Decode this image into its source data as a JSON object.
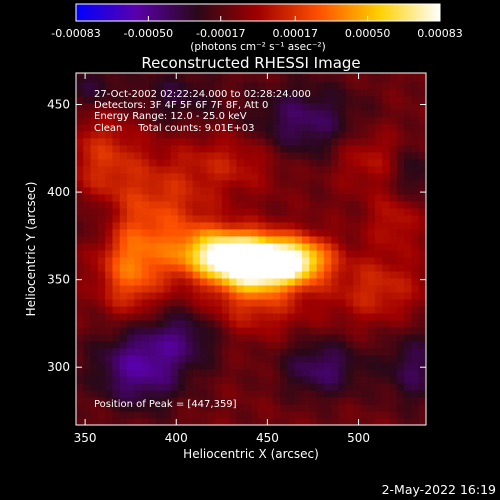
{
  "chart_data": {
    "type": "heatmap",
    "title": "Reconstructed RHESSI Image",
    "xlabel": "Heliocentric X (arcsec)",
    "ylabel": "Heliocentric Y (arcsec)",
    "xlim": [
      345,
      537
    ],
    "ylim": [
      267,
      468
    ],
    "xticks": [
      350,
      400,
      450,
      500
    ],
    "yticks": [
      300,
      350,
      400,
      450
    ],
    "colorbar": {
      "ticks": [
        "-0.00083",
        "-0.00050",
        "-0.00017",
        "0.00017",
        "0.00050",
        "0.00083"
      ],
      "range": [
        -0.00083,
        0.00083
      ],
      "units": "(photons cm⁻² s⁻¹ asec⁻²)",
      "colors": [
        "#0000ff",
        "#5a00aa",
        "#2a0818",
        "#a00000",
        "#ff5000",
        "#ffd000",
        "#ffffff"
      ]
    },
    "annotations": [
      "27-Oct-2002 02:22:24.000 to 02:28:24.000",
      "Detectors: 3F 4F 5F 6F 7F 8F, Att 0",
      "Energy Range: 12.0 - 25.0 keV",
      "Clean     Total counts: 9.01E+03"
    ],
    "peak_label": "Position of Peak = [447,359]",
    "peak": [
      447,
      359
    ],
    "sources": [
      {
        "x": 447,
        "y": 359,
        "sx": 16,
        "sy": 10,
        "amp": 0.0011
      },
      {
        "x": 425,
        "y": 365,
        "sx": 18,
        "sy": 10,
        "amp": 0.00075
      },
      {
        "x": 470,
        "y": 362,
        "sx": 12,
        "sy": 9,
        "amp": 0.0005
      },
      {
        "x": 392,
        "y": 388,
        "sx": 20,
        "sy": 22,
        "amp": 0.0003
      },
      {
        "x": 375,
        "y": 355,
        "sx": 12,
        "sy": 18,
        "amp": 0.0004
      },
      {
        "x": 360,
        "y": 420,
        "sx": 14,
        "sy": 18,
        "amp": 0.00025
      },
      {
        "x": 440,
        "y": 335,
        "sx": 22,
        "sy": 12,
        "amp": 0.00025
      },
      {
        "x": 510,
        "y": 345,
        "sx": 18,
        "sy": 14,
        "amp": 0.00025
      },
      {
        "x": 505,
        "y": 420,
        "sx": 14,
        "sy": 12,
        "amp": 0.0002
      },
      {
        "x": 432,
        "y": 418,
        "sx": 20,
        "sy": 12,
        "amp": 0.0002
      },
      {
        "x": 520,
        "y": 385,
        "sx": 10,
        "sy": 12,
        "amp": 0.0002
      },
      {
        "x": 480,
        "y": 300,
        "sx": 16,
        "sy": 12,
        "amp": -0.0003
      },
      {
        "x": 380,
        "y": 300,
        "sx": 18,
        "sy": 16,
        "amp": -0.0004
      },
      {
        "x": 405,
        "y": 320,
        "sx": 16,
        "sy": 12,
        "amp": -0.00025
      },
      {
        "x": 530,
        "y": 300,
        "sx": 12,
        "sy": 16,
        "amp": -0.00025
      },
      {
        "x": 470,
        "y": 440,
        "sx": 22,
        "sy": 16,
        "amp": -0.0003
      },
      {
        "x": 400,
        "y": 455,
        "sx": 16,
        "sy": 12,
        "amp": -0.0002
      },
      {
        "x": 355,
        "y": 460,
        "sx": 12,
        "sy": 10,
        "amp": -0.0002
      },
      {
        "x": 355,
        "y": 385,
        "sx": 10,
        "sy": 10,
        "amp": -0.00015
      },
      {
        "x": 530,
        "y": 410,
        "sx": 10,
        "sy": 12,
        "amp": -0.0002
      }
    ],
    "background": -0.00012,
    "grid": false
  },
  "footer_date": "2-May-2022 16:19"
}
